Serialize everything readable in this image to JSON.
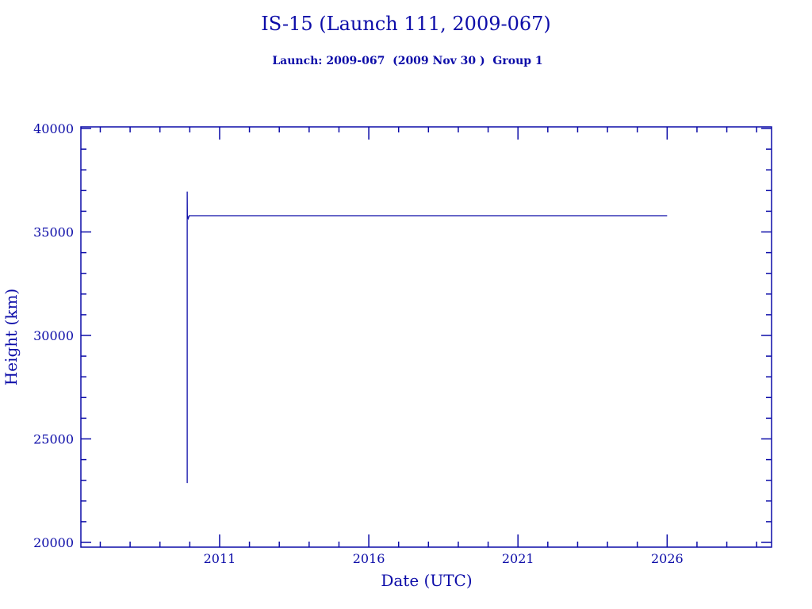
{
  "chart_data": {
    "type": "line",
    "title": "IS-15 (Launch 111, 2009-067)",
    "subtitle": "Launch: 2009-067  (2009 Nov 30 )  Group 1",
    "xlabel": "Date (UTC)",
    "ylabel": "Height (km)",
    "xlim": [
      2006.35,
      2029.5
    ],
    "ylim": [
      19770,
      40077
    ],
    "x_ticks": [
      2011,
      2016,
      2021,
      2026
    ],
    "x_tick_labels": [
      "2011",
      "2016",
      "2021",
      "2026"
    ],
    "x_minor_step": 1,
    "y_ticks": [
      20000,
      25000,
      30000,
      35000,
      40000
    ],
    "y_tick_labels": [
      "20000",
      "25000",
      "30000",
      "35000",
      "40000"
    ],
    "y_minor_step": 1000,
    "grid": false,
    "color": "#0c0ca8",
    "series": [
      {
        "x": [
          2009.915,
          2009.915,
          2009.92,
          2009.95,
          2009.98,
          2026.0
        ],
        "y": [
          22870,
          36950,
          35790,
          35650,
          35786,
          35786
        ]
      }
    ]
  }
}
